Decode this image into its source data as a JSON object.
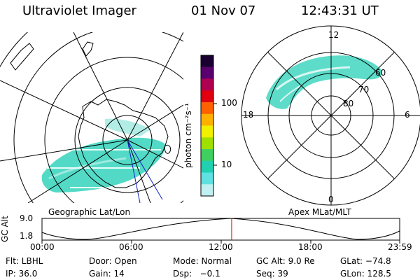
{
  "header": {
    "instrument": "Ultraviolet Imager",
    "date": "01 Nov 07",
    "time": "12:43:31 UT"
  },
  "colorbar": {
    "unit_label": "photon cm⁻²s⁻¹",
    "ticks": [
      "100",
      "10"
    ],
    "colors": [
      "#1a0030",
      "#5a0070",
      "#b00050",
      "#e00010",
      "#ff6000",
      "#ffb000",
      "#f0f000",
      "#a0e000",
      "#40d060",
      "#20d0b0",
      "#60e0e0",
      "#c0f0f0"
    ]
  },
  "left_map": {
    "caption": "Geographic Lat/Lon",
    "aurora_color": "#3fd6c0"
  },
  "right_map": {
    "caption": "Apex MLat/MLT",
    "lat_labels": [
      "60",
      "70",
      "80"
    ],
    "mlt_labels": {
      "top": "12",
      "left": "18",
      "right": "6",
      "bottom": "0"
    }
  },
  "timeline": {
    "axis_label": "GC Alt",
    "y_ticks": [
      "9.0",
      "1.8"
    ],
    "x_ticks": [
      "00:00",
      "06:00",
      "12:00",
      "18:00",
      "23:59"
    ],
    "current_marker_color": "#e00000",
    "current_hour": 12.725
  },
  "info": {
    "flt": "Flt: LBHL",
    "door": "Door: Open",
    "mode": "Mode: Normal",
    "gc_alt": "GC Alt: 9.0 Re",
    "glat": "GLat: −74.8",
    "ip": "IP: 36.0",
    "gain": "Gain: 14",
    "dsp": "Dsp:   −0.1",
    "seq": "Seq: 39",
    "glon": "GLon: 128.5"
  }
}
